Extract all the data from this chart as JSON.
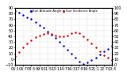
{
  "background_color": "#ffffff",
  "grid_color": "#aaaaaa",
  "sun_altitude": {
    "x": [
      0,
      1,
      2,
      3,
      4,
      5,
      6,
      7,
      8,
      9,
      10,
      11,
      12,
      13,
      14,
      15,
      16,
      17,
      18,
      19,
      20,
      21,
      22,
      23,
      24
    ],
    "y": [
      85,
      82,
      78,
      74,
      70,
      65,
      60,
      55,
      49,
      43,
      37,
      30,
      23,
      16,
      9,
      2,
      -4,
      -8,
      -6,
      -2,
      3,
      8,
      13,
      18,
      23
    ],
    "color": "#0000dd",
    "markersize": 1.5
  },
  "sun_incidence": {
    "x": [
      0,
      1,
      2,
      3,
      4,
      5,
      6,
      7,
      8,
      9,
      10,
      11,
      12,
      13,
      14,
      15,
      16,
      17,
      18,
      19,
      20,
      21,
      22,
      23,
      24
    ],
    "y": [
      15,
      22,
      30,
      37,
      43,
      48,
      52,
      54,
      55,
      54,
      52,
      50,
      50,
      52,
      55,
      57,
      55,
      50,
      44,
      37,
      30,
      23,
      17,
      12,
      8
    ],
    "color": "#dd0000",
    "markersize": 1.5
  },
  "xlim": [
    0,
    24
  ],
  "ylim_left": [
    -10,
    90
  ],
  "ylim_right": [
    0,
    100
  ],
  "xtick_labels": [
    "05:1",
    "06:7",
    "08:3",
    "09:9",
    "11:5",
    "13:1",
    "14:7",
    "16:3",
    "17:9",
    "19:5",
    "21:1",
    "22:7",
    "00:3"
  ],
  "yticks_left": [
    -10,
    0,
    10,
    20,
    30,
    40,
    50,
    60,
    70,
    80,
    90
  ],
  "yticks_right": [
    0,
    10,
    20,
    30,
    40,
    50,
    60,
    70,
    80,
    90,
    100
  ],
  "tick_fontsize": 3.5,
  "legend": [
    {
      "label": "Sun Altitude Angle",
      "color": "#0000dd"
    },
    {
      "label": "Sun Incidence Angle",
      "color": "#dd0000"
    }
  ]
}
